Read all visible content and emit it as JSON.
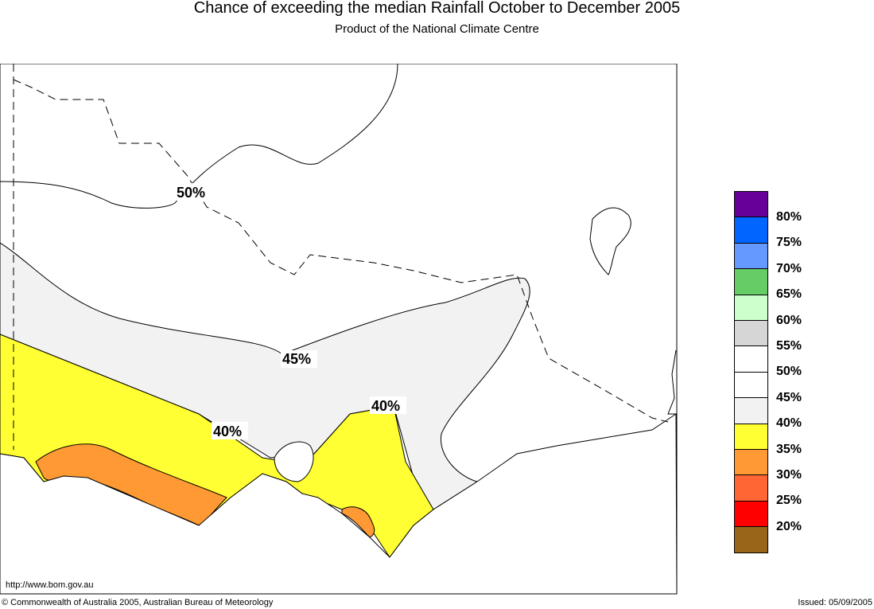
{
  "title": "Chance of exceeding the median Rainfall October to December 2005",
  "subtitle": "Product of the National Climate Centre",
  "url": "http://www.bom.gov.au",
  "copyright": "© Commonwealth of Australia 2005, Australian Bureau of Meteorology",
  "issued": "Issued: 05/09/2005",
  "contour_labels": [
    "50%",
    "45%",
    "40%",
    "40%"
  ],
  "legend": {
    "colors": [
      "#660099",
      "#0066ff",
      "#6699ff",
      "#66cc66",
      "#ccffcc",
      "#d6d6d6",
      "#ffffff",
      "#ffffff",
      "#f2f2f2",
      "#ffff33",
      "#ff9933",
      "#ff6633",
      "#ff0000",
      "#996619"
    ],
    "labels": [
      "80%",
      "75%",
      "70%",
      "65%",
      "60%",
      "55%",
      "50%",
      "45%",
      "40%",
      "35%",
      "30%",
      "25%",
      "20%"
    ]
  }
}
